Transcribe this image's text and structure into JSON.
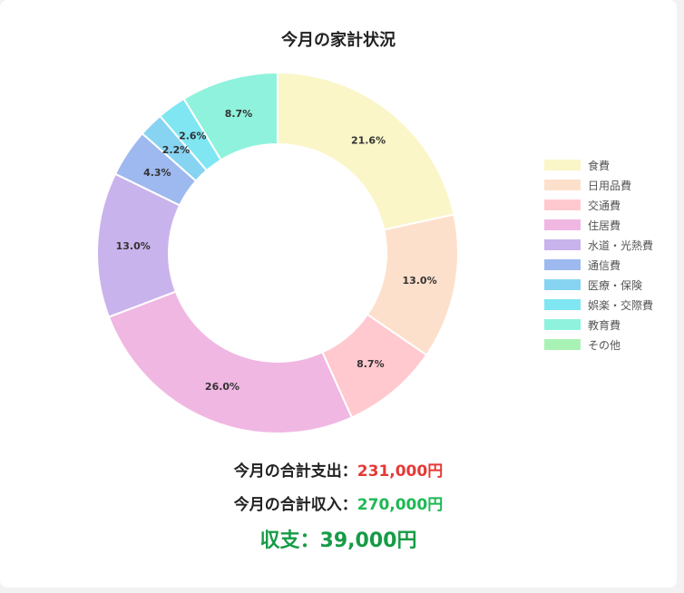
{
  "chart_data": {
    "type": "pie",
    "title": "今月の家計状況",
    "categories": [
      "食費",
      "日用品費",
      "交通費",
      "住居費",
      "水道・光熱費",
      "通信費",
      "医療・保険",
      "娯楽・交際費",
      "教育費",
      "その他"
    ],
    "values": [
      21.6,
      13.0,
      8.7,
      26.0,
      13.0,
      4.3,
      2.2,
      2.6,
      8.7,
      0
    ],
    "value_labels": [
      "21.6%",
      "13.0%",
      "8.7%",
      "26.0%",
      "13.0%",
      "4.3%",
      "2.2%",
      "2.6%",
      "8.7%",
      ""
    ],
    "colors": [
      "#faf6c8",
      "#fde0cc",
      "#ffc9cf",
      "#f0b7e3",
      "#c9b3ec",
      "#9db9ef",
      "#87d4f2",
      "#7fe6f2",
      "#8ff2dc",
      "#a9f2b6"
    ],
    "legend_position": "right",
    "donut": true
  },
  "summary": {
    "expense_label": "今月の合計支出：",
    "expense_value": "231,000円",
    "income_label": "今月の合計収入：",
    "income_value": "270,000円",
    "balance_label": "収支：",
    "balance_value": "39,000円"
  }
}
